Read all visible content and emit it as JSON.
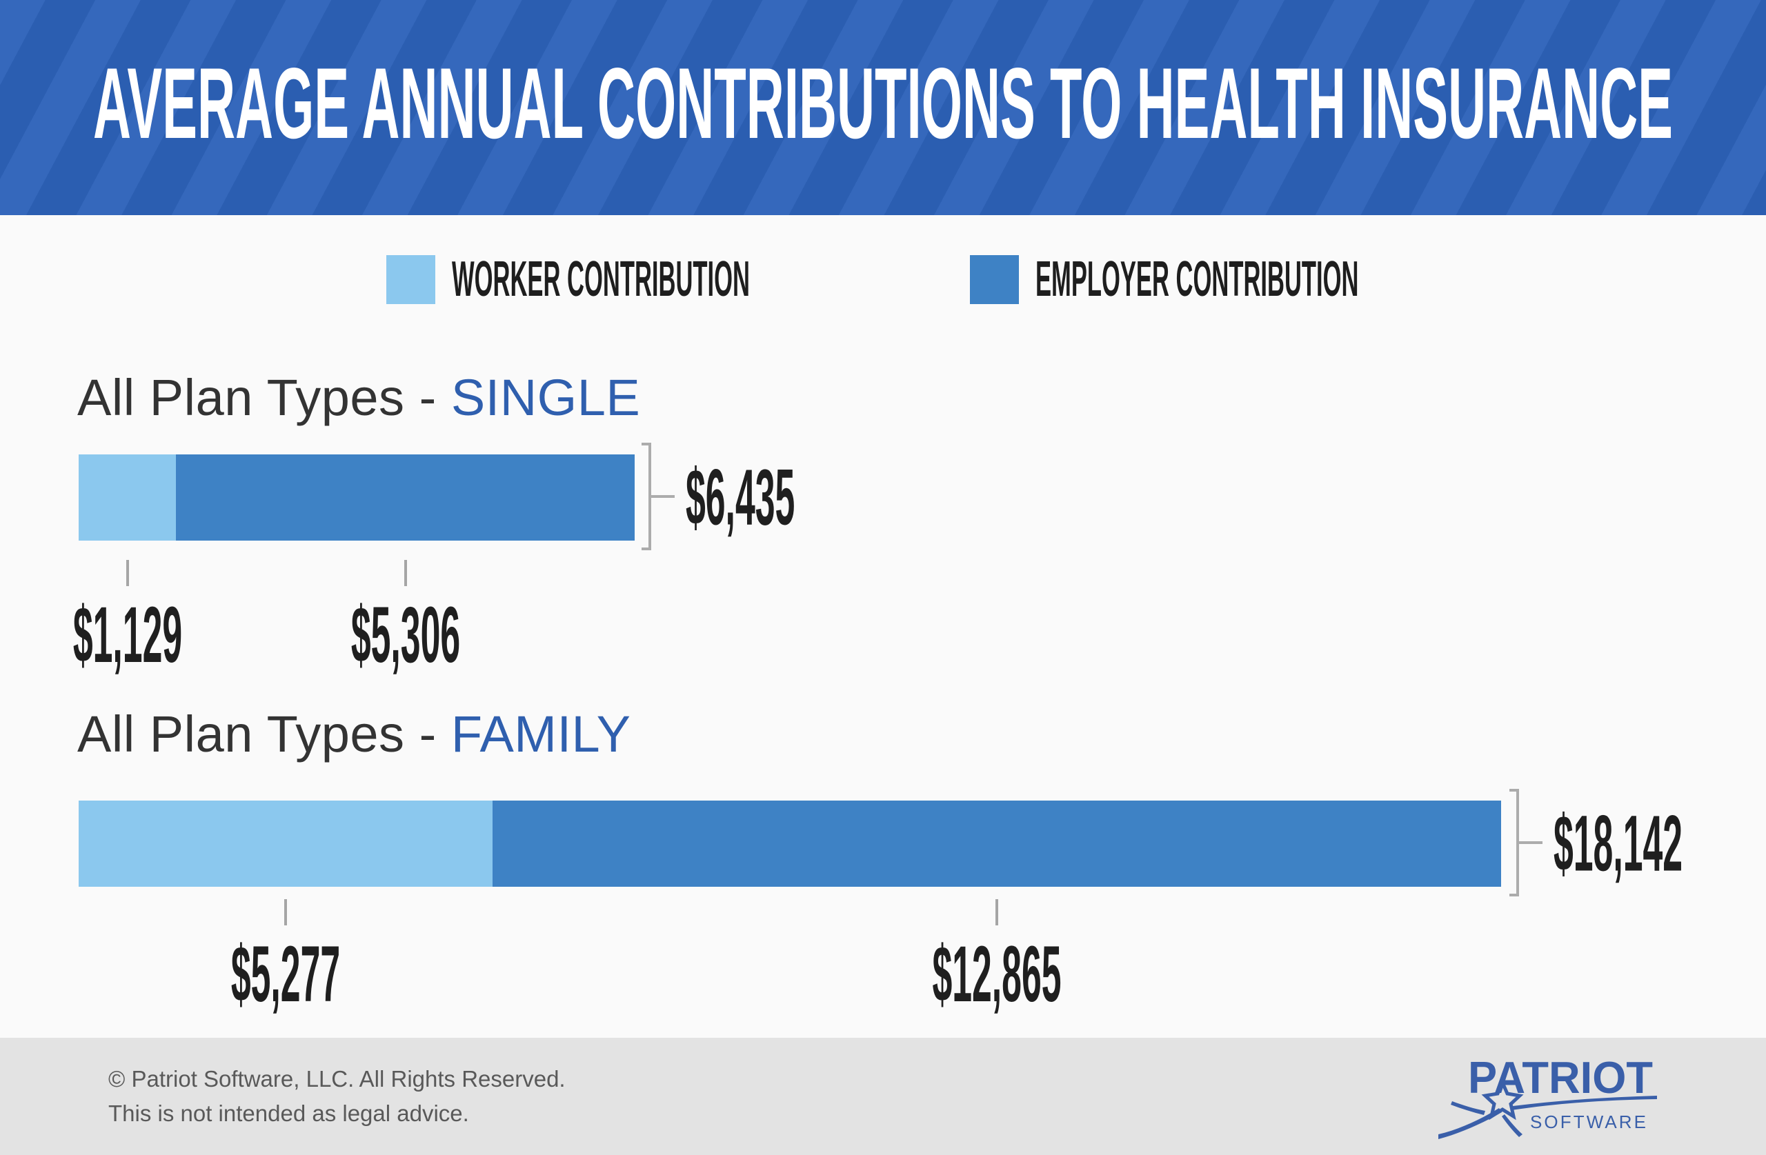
{
  "header": {
    "title": "AVERAGE ANNUAL CONTRIBUTIONS TO HEALTH INSURANCE"
  },
  "legend": {
    "items": [
      {
        "label": "WORKER CONTRIBUTION",
        "color": "#8BC8EE"
      },
      {
        "label": "EMPLOYER CONTRIBUTION",
        "color": "#3E82C5"
      }
    ]
  },
  "chart_data": {
    "type": "bar",
    "stacked": true,
    "orientation": "horizontal",
    "series": [
      "Worker Contribution",
      "Employer Contribution"
    ],
    "series_colors": [
      "#8BC8EE",
      "#3E82C5"
    ],
    "groups": [
      {
        "title_prefix": "All Plan Types - ",
        "title_highlight": "SINGLE",
        "values": [
          1129,
          5306
        ],
        "value_labels": [
          "$1,129",
          "$5,306"
        ],
        "total": 6435,
        "total_label": "$6,435"
      },
      {
        "title_prefix": "All Plan Types - ",
        "title_highlight": "FAMILY",
        "values": [
          5277,
          12865
        ],
        "value_labels": [
          "$5,277",
          "$12,865"
        ],
        "total": 18142,
        "total_label": "$18,142"
      }
    ]
  },
  "footer": {
    "copyright": "© Patriot Software, LLC. All Rights Reserved.",
    "disclaimer": "This is not intended as legal advice.",
    "logo": {
      "primary": "PATRIOT",
      "secondary": "SOFTWARE",
      "color": "#3A5FA9"
    }
  },
  "colors": {
    "header_base": "#2B5EB1",
    "header_stripe": "#3568BC",
    "worker_blue": "#8BC8EE",
    "employer_blue": "#3E82C5",
    "highlight_blue": "#2F5FAE",
    "bracket_gray": "#ACACAC",
    "tick_gray": "#A5A5A5",
    "footer_bg": "#E3E3E3",
    "page_bg": "#FAFAFA"
  }
}
